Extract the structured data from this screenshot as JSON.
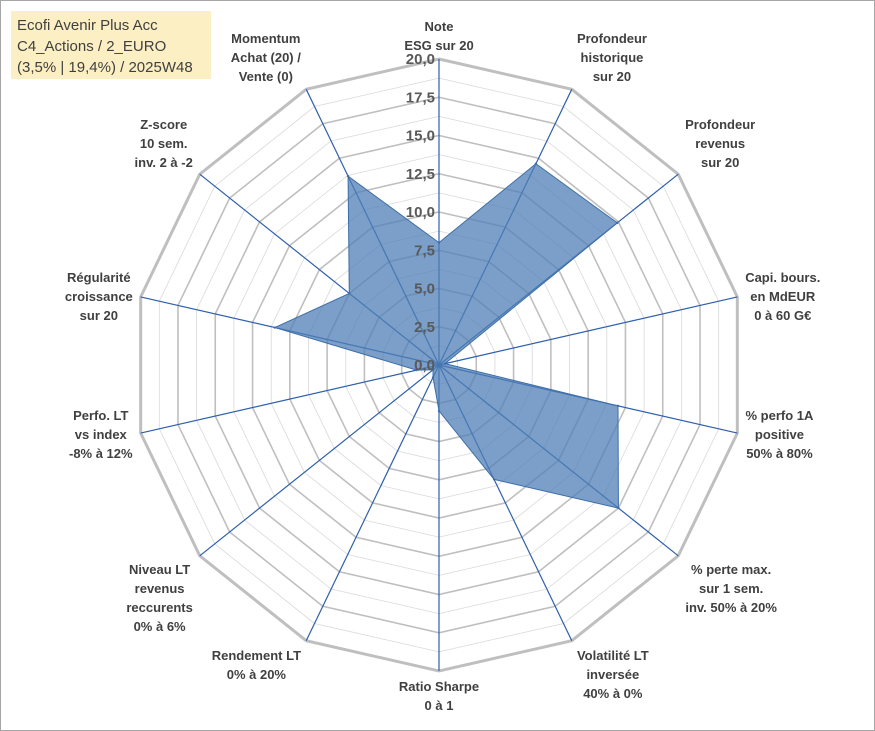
{
  "title": [
    "Ecofi Avenir Plus Acc",
    "C4_Actions / 2_EURO",
    "(3,5% | 19,4%) / 2025W48"
  ],
  "chart_data": {
    "type": "radar",
    "title": "Ecofi Avenir Plus Acc C4_Actions / 2_EURO (3,5% | 19,4%) / 2025W48",
    "range": [
      0,
      20
    ],
    "ticks": [
      "0,0",
      "2,5",
      "5,0",
      "7,5",
      "10,0",
      "12,5",
      "15,0",
      "17,5",
      "20,0"
    ],
    "grid": true,
    "colors": {
      "fill": "#4f7fb5",
      "stroke": "#3d6ea8",
      "spoke": "#2e5fad",
      "grid": "#bfbfbf",
      "minor_grid": "#d9d9d9"
    },
    "axes": [
      {
        "label": [
          "Note",
          "ESG sur 20"
        ],
        "value": 8.0
      },
      {
        "label": [
          "Profondeur",
          "historique",
          "sur 20"
        ],
        "value": 14.6
      },
      {
        "label": [
          "Profondeur",
          "revenus",
          "sur 20"
        ],
        "value": 14.9
      },
      {
        "label": [
          "Capi. bours.",
          "en MdEUR",
          "0 à 60 G€"
        ],
        "value": 0.4
      },
      {
        "label": [
          "% perfo 1A",
          "positive",
          "50% à 80%"
        ],
        "value": 12.0
      },
      {
        "label": [
          "% perte max.",
          "sur 1 sem.",
          "inv. 50% à 20%"
        ],
        "value": 15.0
      },
      {
        "label": [
          "Volatilité LT",
          "inversée",
          "40% à 0%"
        ],
        "value": 8.3
      },
      {
        "label": [
          "Ratio Sharpe",
          "0 à 1"
        ],
        "value": 3.0
      },
      {
        "label": [
          "Rendement LT",
          "0% à 20%"
        ],
        "value": 0.9
      },
      {
        "label": [
          "Niveau LT",
          "revenus",
          "reccurents",
          "0% à 6%"
        ],
        "value": 0.5
      },
      {
        "label": [
          "Perfo. LT",
          "vs index",
          "-8% à 12%"
        ],
        "value": 1.5
      },
      {
        "label": [
          "Régularité",
          "croissance",
          "sur 20"
        ],
        "value": 11.0
      },
      {
        "label": [
          "Z-score",
          "10 sem.",
          "inv. 2 à -2"
        ],
        "value": 7.5
      },
      {
        "label": [
          "Momentum",
          "Achat (20) /",
          "Vente (0)"
        ],
        "value": 13.7
      }
    ]
  }
}
